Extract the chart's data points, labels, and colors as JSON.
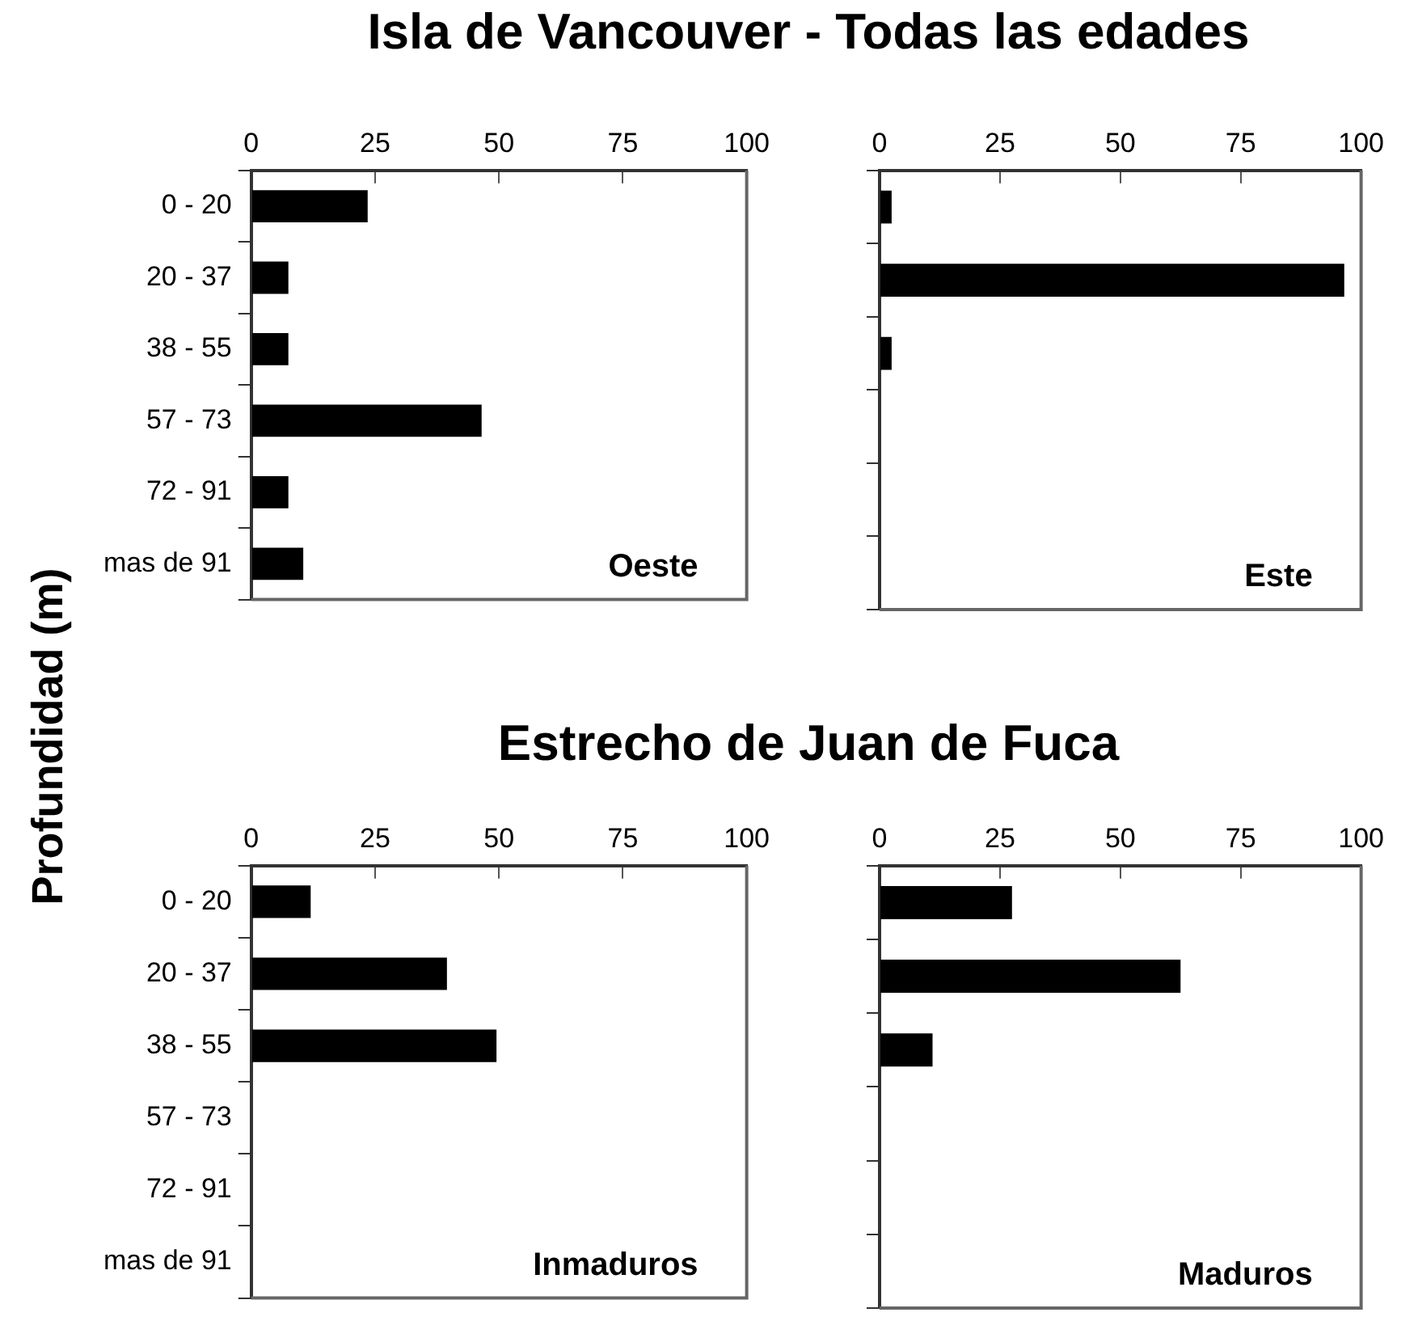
{
  "chart_data": [
    {
      "type": "bar",
      "orientation": "horizontal",
      "title": "Isla de Vancouver  - Todas las edades",
      "ylabel": "Profundidad  (m)",
      "categories": [
        "0 - 20",
        "20 - 37",
        "38 - 55",
        "57 - 73",
        "72 - 91",
        "mas de 91"
      ],
      "values": [
        23.5,
        7.5,
        7.5,
        46.5,
        7.5,
        10.5
      ],
      "color": "#000000",
      "xlim": [
        0,
        100
      ],
      "xticks": [
        0,
        25,
        50,
        75,
        100
      ],
      "annotations": [
        "Oeste"
      ]
    },
    {
      "type": "bar",
      "orientation": "horizontal",
      "categories": [
        null,
        null,
        null,
        null,
        null,
        null
      ],
      "values": [
        2.5,
        96.5,
        2.5,
        0,
        0,
        0
      ],
      "color": "#000000",
      "xlim": [
        0,
        100
      ],
      "xticks": [
        0,
        25,
        50,
        75,
        100
      ],
      "annotations": [
        "Este"
      ],
      "tick_labels": "x"
    },
    {
      "type": "bar",
      "orientation": "horizontal",
      "title": "Estrecho de Juan de Fuca",
      "categories": [
        "0 - 20",
        "20 - 37",
        "38 - 55",
        "57 - 73",
        "72 - 91",
        "mas de 91"
      ],
      "values": [
        12,
        39.5,
        49.5,
        0,
        0,
        0
      ],
      "color": "#000000",
      "xlim": [
        0,
        100
      ],
      "xticks": [
        0,
        25,
        50,
        75,
        100
      ],
      "annotations": [
        "Inmaduros"
      ]
    },
    {
      "type": "bar",
      "orientation": "horizontal",
      "categories": [
        null,
        null,
        null,
        null,
        null,
        null
      ],
      "values": [
        27.5,
        62.5,
        11,
        0,
        0,
        0
      ],
      "color": "#000000",
      "xlim": [
        0,
        100
      ],
      "xticks": [
        0,
        25,
        50,
        75,
        100
      ],
      "annotations": [
        "Maduros"
      ],
      "tick_labels": "x"
    }
  ]
}
